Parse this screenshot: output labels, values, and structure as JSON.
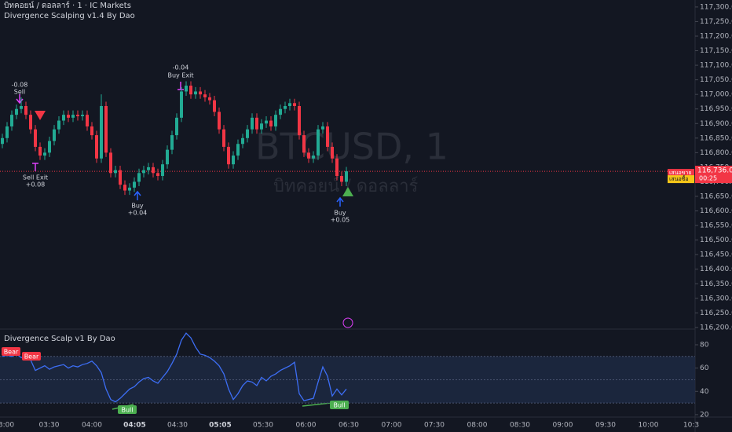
{
  "header": {
    "symbol": "บิทคอยน์ / ดอลลาร์ · 1 · IC Markets",
    "indicator": "Divergence Scalping v1.4 By Dao"
  },
  "time_labels": [
    "3:00",
    "03:30",
    "04:00",
    "04:05",
    "04:30",
    "05:05",
    "05:30",
    "06:00",
    "06:30",
    "07:00",
    "07:30",
    "08:00",
    "08:30",
    "09:00",
    "09:30",
    "10:00",
    "10:3"
  ],
  "chart_data": [
    {
      "type": "candlestick",
      "title": "BTCUSD, 1",
      "subtitle": "บิทคอยน์ / ดอลลาร์",
      "up_color": "#22ab94",
      "down_color": "#f23645",
      "ylim": [
        116197,
        117324
      ],
      "yticks": [
        {
          "value": 116200,
          "label": "116,200.00"
        },
        {
          "value": 116250,
          "label": "116,250.00"
        },
        {
          "value": 116300,
          "label": "116,300.00"
        },
        {
          "value": 116350,
          "label": "116,350.00"
        },
        {
          "value": 116400,
          "label": "116,400.00"
        },
        {
          "value": 116450,
          "label": "116,450.00"
        },
        {
          "value": 116500,
          "label": "116,500.00"
        },
        {
          "value": 116550,
          "label": "116,550.00"
        },
        {
          "value": 116600,
          "label": "116,600.00"
        },
        {
          "value": 116650,
          "label": "116,650.00"
        },
        {
          "value": 116700,
          "label": "116,700.00"
        },
        {
          "value": 116750,
          "label": "116,750.00"
        },
        {
          "value": 116800,
          "label": "116,800.00"
        },
        {
          "value": 116850,
          "label": "116,850.00"
        },
        {
          "value": 116900,
          "label": "116,900.00"
        },
        {
          "value": 116950,
          "label": "116,950.00"
        },
        {
          "value": 117000,
          "label": "117,000.00"
        },
        {
          "value": 117050,
          "label": "117,050.00"
        },
        {
          "value": 117100,
          "label": "117,100.00"
        },
        {
          "value": 117150,
          "label": "117,150.00"
        },
        {
          "value": 117200,
          "label": "117,200.00"
        },
        {
          "value": 117250,
          "label": "117,250.00"
        },
        {
          "value": 117300,
          "label": "117,300.00"
        }
      ],
      "grid": false,
      "last_price": {
        "value": 116736,
        "label": "116,736.00"
      },
      "countdown": "00:25",
      "bid_ask": [
        "เสนอขาย",
        "เสนอซื้อ"
      ],
      "annotations": [
        "-0.08",
        "Sell",
        "Sell Exit",
        "+0.08",
        "Buy",
        "+0.04",
        "-0.04",
        "Buy Exit",
        "Buy",
        "+0.05"
      ],
      "open": [
        116830,
        116850,
        116890,
        116930,
        116950,
        116960,
        116930,
        116880,
        116820,
        116790,
        116800,
        116840,
        116880,
        116910,
        116930,
        116920,
        116930,
        116925,
        116930,
        116890,
        116860,
        116780,
        116960,
        116800,
        116730,
        116740,
        116690,
        116670,
        116680,
        116700,
        116730,
        116740,
        116750,
        116730,
        116720,
        116760,
        116810,
        116860,
        116920,
        117010,
        117030,
        117000,
        117010,
        117000,
        116990,
        116980,
        116940,
        116880,
        116820,
        116760,
        116790,
        116830,
        116850,
        116880,
        116920,
        116880,
        116900,
        116910,
        116890,
        116930,
        116950,
        116960,
        116970,
        116960,
        116860,
        116800,
        116780,
        116790,
        116880,
        116890,
        116820,
        116780,
        116720,
        116700
      ],
      "high": [
        116865,
        116905,
        116945,
        116965,
        116990,
        116975,
        116945,
        116895,
        116835,
        116815,
        116855,
        116895,
        116925,
        116945,
        116945,
        116945,
        116945,
        116945,
        116945,
        116905,
        116875,
        117000,
        116975,
        116815,
        116755,
        116755,
        116705,
        116695,
        116715,
        116745,
        116755,
        116765,
        116765,
        116745,
        116775,
        116825,
        116875,
        116935,
        117025,
        117045,
        117045,
        117025,
        117025,
        117015,
        117005,
        116995,
        116955,
        116895,
        116835,
        116805,
        116845,
        116865,
        116895,
        116935,
        116935,
        116915,
        116925,
        116925,
        116945,
        116965,
        116975,
        116985,
        116985,
        116975,
        116875,
        116815,
        116805,
        116895,
        116905,
        116905,
        116835,
        116795,
        116735,
        116751
      ],
      "low": [
        116815,
        116835,
        116875,
        116915,
        116935,
        116915,
        116865,
        116805,
        116775,
        116775,
        116785,
        116825,
        116865,
        116895,
        116905,
        116905,
        116910,
        116910,
        116875,
        116845,
        116765,
        116765,
        116785,
        116715,
        116715,
        116675,
        116655,
        116655,
        116665,
        116685,
        116715,
        116725,
        116715,
        116705,
        116705,
        116745,
        116795,
        116845,
        116905,
        116995,
        116985,
        116985,
        116985,
        116975,
        116965,
        116925,
        116865,
        116805,
        116745,
        116745,
        116775,
        116815,
        116835,
        116865,
        116865,
        116865,
        116885,
        116875,
        116875,
        116915,
        116935,
        116945,
        116945,
        116845,
        116785,
        116765,
        116765,
        116775,
        116865,
        116805,
        116765,
        116705,
        116685,
        116685
      ],
      "close": [
        116850,
        116890,
        116930,
        116950,
        116960,
        116930,
        116880,
        116820,
        116790,
        116800,
        116840,
        116880,
        116910,
        116930,
        116920,
        116930,
        116925,
        116930,
        116890,
        116860,
        116780,
        116960,
        116800,
        116730,
        116740,
        116690,
        116670,
        116680,
        116700,
        116730,
        116740,
        116750,
        116730,
        116720,
        116760,
        116810,
        116860,
        116920,
        117010,
        117030,
        117000,
        117010,
        117000,
        116990,
        116980,
        116940,
        116880,
        116820,
        116760,
        116790,
        116830,
        116850,
        116880,
        116920,
        116880,
        116900,
        116910,
        116890,
        116930,
        116950,
        116960,
        116970,
        116960,
        116860,
        116800,
        116780,
        116790,
        116880,
        116890,
        116820,
        116780,
        116720,
        116700,
        116736
      ]
    },
    {
      "type": "line",
      "title": "Divergence Scalp v1 By Dao",
      "color": "#3d6ef5",
      "ylim": [
        18.6,
        92.8
      ],
      "yticks": [
        20,
        40,
        60,
        80
      ],
      "levels": [
        30,
        50,
        70
      ],
      "annotations": [
        "Bear",
        "Bear",
        "Bull",
        "Bull"
      ],
      "values": [
        70,
        71,
        70,
        72,
        69,
        70,
        67,
        58,
        60,
        62,
        59,
        61,
        62,
        63,
        60,
        62,
        61,
        63,
        64,
        66,
        62,
        56,
        42,
        33,
        31,
        34,
        38,
        42,
        44,
        48,
        51,
        52,
        49,
        47,
        52,
        57,
        64,
        72,
        84,
        90,
        86,
        78,
        72,
        71,
        69,
        66,
        62,
        55,
        42,
        33,
        38,
        45,
        49,
        48,
        45,
        52,
        49,
        53,
        55,
        58,
        60,
        62,
        65,
        38,
        32,
        33,
        34,
        48,
        61,
        53,
        36,
        42,
        37,
        42
      ]
    }
  ]
}
